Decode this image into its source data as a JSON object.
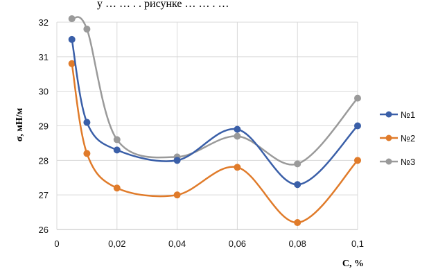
{
  "top_caption": "у … … . . рисунке … … . …",
  "chart_data": {
    "type": "line",
    "xlabel": "C, %",
    "ylabel": "σ, мН/м",
    "xlim": [
      0,
      0.1
    ],
    "ylim": [
      26,
      32
    ],
    "x_ticks": [
      "0",
      "0,02",
      "0,04",
      "0,06",
      "0,08",
      "0,1"
    ],
    "y_ticks": [
      "26",
      "27",
      "28",
      "29",
      "30",
      "31",
      "32"
    ],
    "grid": "vertical and horizontal",
    "legend_position": "right",
    "smooth": true,
    "x": [
      0.005,
      0.01,
      0.02,
      0.04,
      0.06,
      0.08,
      0.1
    ],
    "series": [
      {
        "name": "№1",
        "color": "#3a5fa8",
        "values": [
          31.5,
          29.1,
          28.3,
          28.0,
          28.9,
          27.3,
          29.0
        ]
      },
      {
        "name": "№2",
        "color": "#e07b2a",
        "values": [
          30.8,
          28.2,
          27.2,
          27.0,
          27.8,
          26.2,
          28.0
        ]
      },
      {
        "name": "№3",
        "color": "#9a9a9a",
        "values": [
          32.1,
          31.8,
          28.6,
          28.1,
          28.7,
          27.9,
          29.8
        ]
      }
    ]
  }
}
